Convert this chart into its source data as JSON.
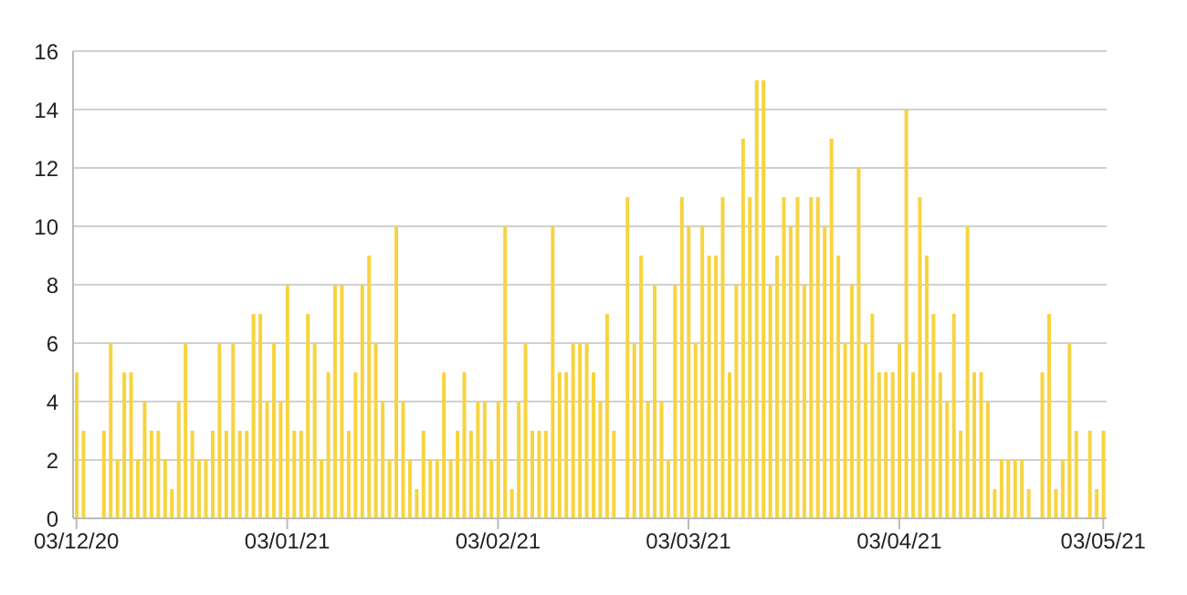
{
  "chart_data": {
    "type": "bar",
    "x": [
      "2020-12-03",
      "2020-12-04",
      "2020-12-05",
      "2020-12-06",
      "2020-12-07",
      "2020-12-08",
      "2020-12-09",
      "2020-12-10",
      "2020-12-11",
      "2020-12-12",
      "2020-12-13",
      "2020-12-14",
      "2020-12-15",
      "2020-12-16",
      "2020-12-17",
      "2020-12-18",
      "2020-12-19",
      "2020-12-20",
      "2020-12-21",
      "2020-12-22",
      "2020-12-23",
      "2020-12-24",
      "2020-12-25",
      "2020-12-26",
      "2020-12-27",
      "2020-12-28",
      "2020-12-29",
      "2020-12-30",
      "2020-12-31",
      "2021-01-01",
      "2021-01-02",
      "2021-01-03",
      "2021-01-04",
      "2021-01-05",
      "2021-01-06",
      "2021-01-07",
      "2021-01-08",
      "2021-01-09",
      "2021-01-10",
      "2021-01-11",
      "2021-01-12",
      "2021-01-13",
      "2021-01-14",
      "2021-01-15",
      "2021-01-16",
      "2021-01-17",
      "2021-01-18",
      "2021-01-19",
      "2021-01-20",
      "2021-01-21",
      "2021-01-22",
      "2021-01-23",
      "2021-01-24",
      "2021-01-25",
      "2021-01-26",
      "2021-01-27",
      "2021-01-28",
      "2021-01-29",
      "2021-01-30",
      "2021-01-31",
      "2021-02-01",
      "2021-02-02",
      "2021-02-03",
      "2021-02-04",
      "2021-02-05",
      "2021-02-06",
      "2021-02-07",
      "2021-02-08",
      "2021-02-09",
      "2021-02-10",
      "2021-02-11",
      "2021-02-12",
      "2021-02-13",
      "2021-02-14",
      "2021-02-15",
      "2021-02-16",
      "2021-02-17",
      "2021-02-18",
      "2021-02-19",
      "2021-02-20",
      "2021-02-21",
      "2021-02-22",
      "2021-02-23",
      "2021-02-24",
      "2021-02-25",
      "2021-02-26",
      "2021-02-27",
      "2021-02-28",
      "2021-03-01",
      "2021-03-02",
      "2021-03-03",
      "2021-03-04",
      "2021-03-05",
      "2021-03-06",
      "2021-03-07",
      "2021-03-08",
      "2021-03-09",
      "2021-03-10",
      "2021-03-11",
      "2021-03-12",
      "2021-03-13",
      "2021-03-14",
      "2021-03-15",
      "2021-03-16",
      "2021-03-17",
      "2021-03-18",
      "2021-03-19",
      "2021-03-20",
      "2021-03-21",
      "2021-03-22",
      "2021-03-23",
      "2021-03-24",
      "2021-03-25",
      "2021-03-26",
      "2021-03-27",
      "2021-03-28",
      "2021-03-29",
      "2021-03-30",
      "2021-03-31",
      "2021-04-01",
      "2021-04-02",
      "2021-04-03",
      "2021-04-04",
      "2021-04-05",
      "2021-04-06",
      "2021-04-07",
      "2021-04-08",
      "2021-04-09",
      "2021-04-10",
      "2021-04-11",
      "2021-04-12",
      "2021-04-13",
      "2021-04-14",
      "2021-04-15",
      "2021-04-16",
      "2021-04-17",
      "2021-04-18",
      "2021-04-19",
      "2021-04-20",
      "2021-04-21",
      "2021-04-22",
      "2021-04-23",
      "2021-04-24",
      "2021-04-25",
      "2021-04-26",
      "2021-04-27",
      "2021-04-28",
      "2021-04-29",
      "2021-04-30",
      "2021-05-01",
      "2021-05-02",
      "2021-05-03"
    ],
    "values": [
      5,
      3,
      null,
      null,
      3,
      6,
      2,
      5,
      5,
      2,
      4,
      3,
      3,
      2,
      1,
      4,
      6,
      3,
      2,
      2,
      3,
      6,
      3,
      6,
      3,
      3,
      7,
      7,
      4,
      6,
      4,
      8,
      3,
      3,
      7,
      6,
      2,
      5,
      8,
      8,
      3,
      5,
      8,
      9,
      6,
      4,
      2,
      10,
      4,
      2,
      1,
      3,
      2,
      2,
      5,
      2,
      3,
      5,
      3,
      4,
      4,
      2,
      4,
      10,
      1,
      4,
      6,
      3,
      3,
      3,
      10,
      5,
      5,
      6,
      6,
      6,
      5,
      4,
      7,
      3,
      null,
      11,
      6,
      9,
      4,
      8,
      4,
      2,
      8,
      11,
      10,
      6,
      10,
      9,
      9,
      11,
      5,
      8,
      13,
      11,
      15,
      15,
      8,
      9,
      11,
      10,
      11,
      8,
      11,
      11,
      10,
      13,
      9,
      6,
      8,
      12,
      6,
      7,
      5,
      5,
      5,
      6,
      14,
      5,
      11,
      9,
      7,
      5,
      4,
      7,
      3,
      10,
      5,
      5,
      4,
      1,
      2,
      2,
      2,
      2,
      1,
      null,
      5,
      7,
      1,
      2,
      6,
      3,
      null,
      3,
      1,
      3
    ],
    "color": "#f7d43f",
    "xlim": [
      "2020-12-02T12:00",
      "2021-05-03T12:00"
    ],
    "xticks": [
      {
        "value": "2020-12-03",
        "label": "03/12/20"
      },
      {
        "value": "2021-01-03",
        "label": "03/01/21"
      },
      {
        "value": "2021-02-03",
        "label": "03/02/21"
      },
      {
        "value": "2021-03-03",
        "label": "03/03/21"
      },
      {
        "value": "2021-04-03",
        "label": "03/04/21"
      },
      {
        "value": "2021-05-03",
        "label": "03/05/21"
      }
    ],
    "ylim": [
      0,
      16
    ],
    "yticks": [
      0,
      2,
      4,
      6,
      8,
      10,
      12,
      14,
      16
    ],
    "grid": "y"
  }
}
